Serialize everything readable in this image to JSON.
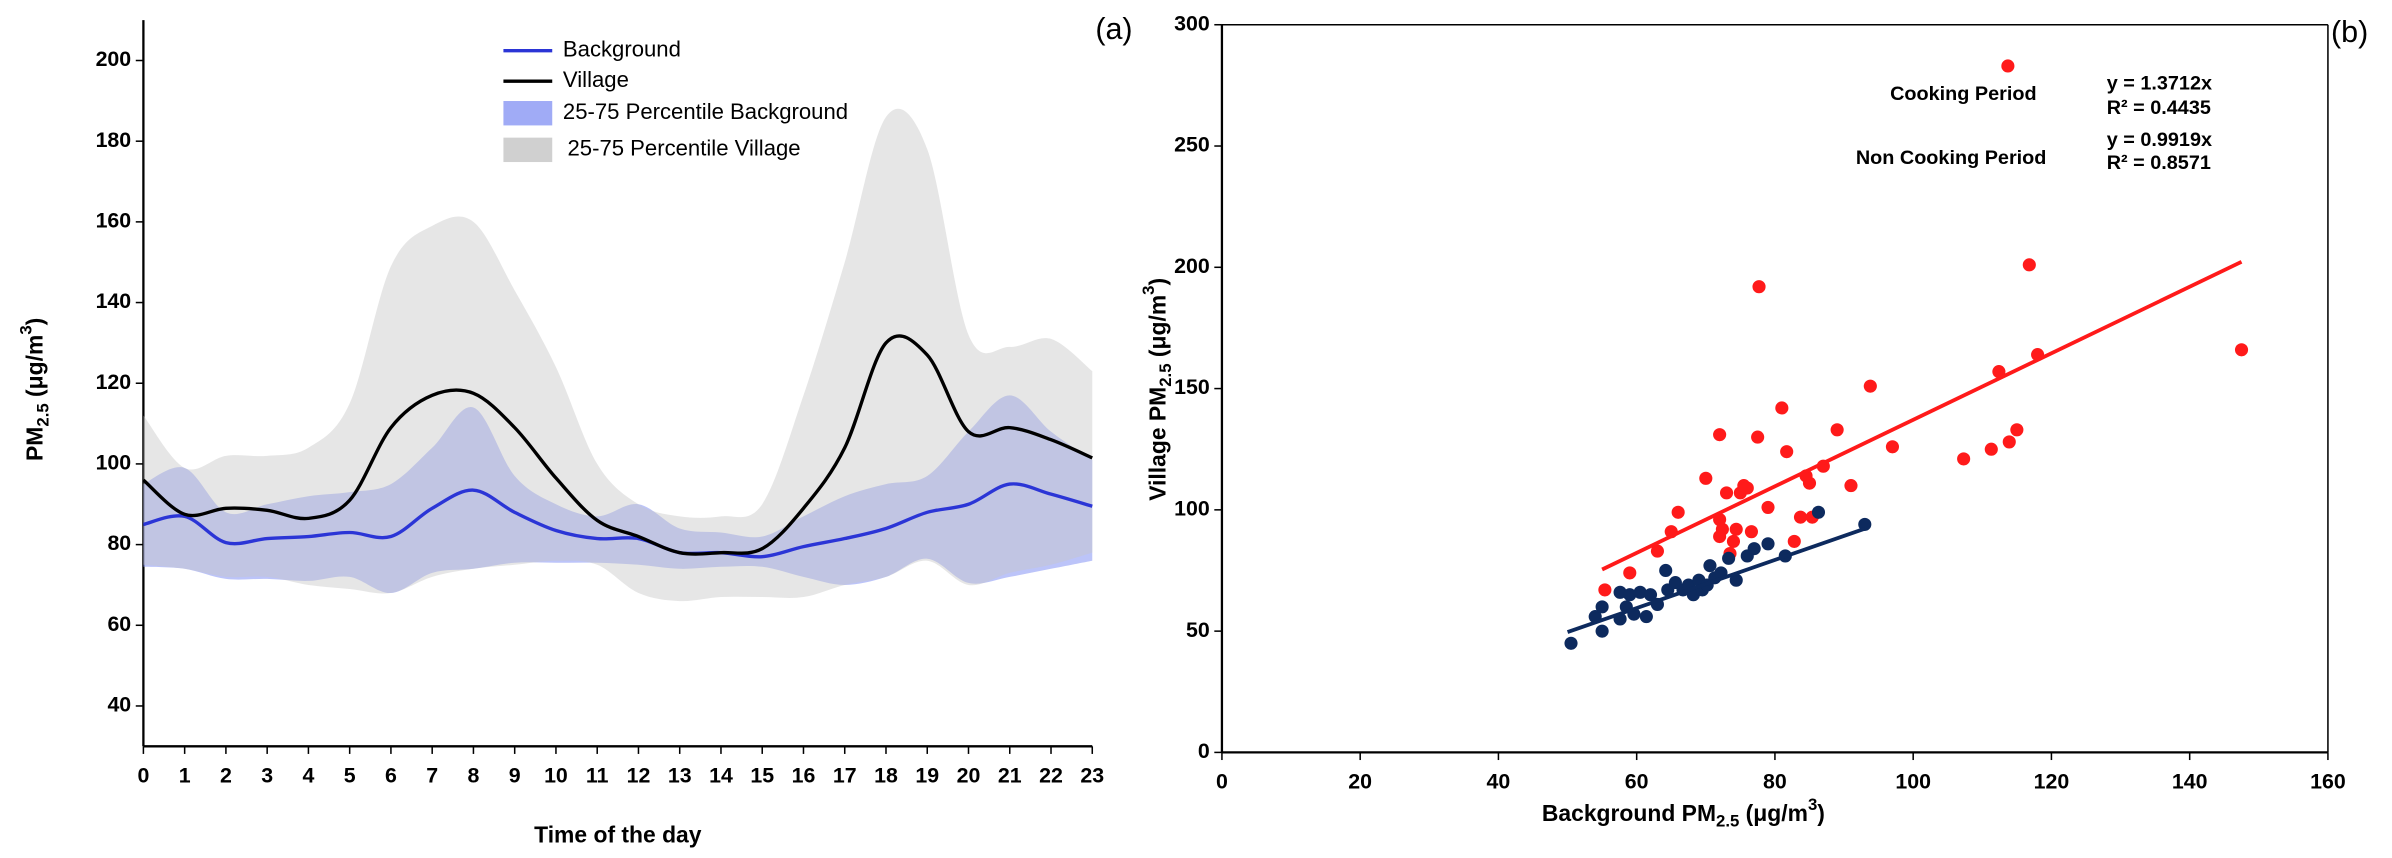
{
  "chart_data": [
    {
      "type": "line",
      "panel": "(a)",
      "xlabel": "Time of the day",
      "ylabel_parts": [
        "PM",
        "2.5",
        " (μg/m",
        "3",
        ")"
      ],
      "x": [
        0,
        1,
        2,
        3,
        4,
        5,
        6,
        7,
        8,
        9,
        10,
        11,
        12,
        13,
        14,
        15,
        16,
        17,
        18,
        19,
        20,
        21,
        22,
        23
      ],
      "xlim": [
        0,
        23
      ],
      "xticks": [
        0,
        1,
        2,
        3,
        4,
        5,
        6,
        7,
        8,
        9,
        10,
        11,
        12,
        13,
        14,
        15,
        16,
        17,
        18,
        19,
        20,
        21,
        22,
        23
      ],
      "ylim": [
        30,
        210
      ],
      "yticks": [
        40,
        60,
        80,
        100,
        120,
        140,
        160,
        180,
        200
      ],
      "series": [
        {
          "name": "Background",
          "kind": "line",
          "color": "#2b35d6",
          "values": [
            85,
            87,
            80.5,
            81.5,
            82,
            83,
            82,
            89,
            93.5,
            88,
            83.5,
            81.5,
            81.5,
            78,
            78,
            77,
            79.5,
            81.5,
            84,
            88,
            90,
            95,
            92.5,
            89.5
          ]
        },
        {
          "name": "Village",
          "kind": "line",
          "color": "#000000",
          "values": [
            96,
            87.5,
            89,
            88.5,
            86.5,
            91,
            109,
            117,
            117.5,
            109,
            96.5,
            86,
            82,
            78,
            78,
            79,
            89,
            104,
            130,
            127,
            108,
            109,
            106,
            101.5
          ]
        },
        {
          "name": "25-75 Percentile Background",
          "kind": "band",
          "color": "#8f9cf5",
          "lower": [
            74.5,
            74,
            71.5,
            71.5,
            71,
            72,
            68,
            73,
            74,
            75.5,
            75.5,
            75.5,
            75,
            74,
            74.5,
            74.5,
            72,
            70,
            72,
            76.5,
            70.5,
            72,
            74,
            76
          ],
          "upper": [
            95,
            99,
            88,
            90,
            92,
            93,
            95,
            104,
            114,
            97,
            90,
            87,
            90,
            84,
            83,
            82,
            87,
            92,
            95,
            97,
            108,
            117,
            108,
            101
          ]
        },
        {
          "name": "25-75 Percentile Village",
          "kind": "band",
          "color": "#c8c8c8",
          "lower": [
            75,
            74,
            72,
            72,
            70,
            69,
            68,
            72,
            74,
            75,
            76,
            75,
            68,
            66,
            67,
            67,
            67,
            70,
            72,
            76,
            70,
            73,
            75,
            78
          ],
          "upper": [
            112,
            99,
            102,
            102,
            104,
            115,
            149,
            159,
            160,
            143,
            124,
            100,
            90,
            87,
            87,
            90,
            117,
            150,
            186,
            178,
            132,
            129,
            131,
            123
          ]
        }
      ]
    },
    {
      "type": "scatter",
      "panel": "(b)",
      "xlabel_parts": [
        "Background PM",
        "2.5",
        " (μg/m",
        "3",
        ")"
      ],
      "ylabel_parts": [
        "Village PM",
        "2.5",
        " (μg/m",
        "3",
        ")"
      ],
      "xlim": [
        0,
        160
      ],
      "xticks": [
        0,
        20,
        40,
        60,
        80,
        100,
        120,
        140,
        160
      ],
      "ylim": [
        0,
        300
      ],
      "yticks": [
        0,
        50,
        100,
        150,
        200,
        250,
        300
      ],
      "series": [
        {
          "name": "Cooking Period",
          "color": "#ff1a1a",
          "equation": "y = 1.3712x",
          "r2": "R² = 0.4435",
          "fit": {
            "slope": 1.3712,
            "x": [
              55,
              147.5
            ]
          },
          "x": [
            55.4,
            59,
            63,
            65,
            66,
            70,
            72,
            72,
            72.4,
            72,
            73,
            73.5,
            74,
            74.4,
            75,
            75.5,
            76,
            76.6,
            77.5,
            77.7,
            79,
            81,
            81.7,
            82.8,
            83.7,
            84.5,
            85,
            85.4,
            87,
            89,
            91,
            93.8,
            97,
            107.3,
            111.3,
            112.4,
            113.9,
            115,
            116.8,
            118,
            113.7,
            147.5
          ],
          "values": [
            67,
            74,
            83,
            91,
            99,
            113,
            131,
            96,
            92,
            89,
            107,
            82,
            87,
            92,
            107,
            110,
            109,
            91,
            130,
            192,
            101,
            142,
            124,
            87,
            97,
            114,
            111,
            97,
            118,
            133,
            110,
            151,
            126,
            121,
            125,
            157,
            128,
            133,
            201,
            164,
            283,
            166
          ]
        },
        {
          "name": "Non Cooking Period",
          "color": "#0d2a5e",
          "equation": "y = 0.9919x",
          "r2": "R² = 0.8571",
          "fit": {
            "slope": 0.9919,
            "x": [
              50,
              93
            ]
          },
          "x": [
            50.5,
            54,
            55,
            55,
            57.6,
            57.6,
            58.5,
            59,
            59.6,
            60.5,
            61.4,
            62,
            63,
            64.2,
            64.5,
            65.6,
            66.7,
            67.5,
            68.2,
            69,
            69.5,
            70.2,
            70.6,
            71.3,
            72.2,
            73.3,
            74.4,
            76,
            77,
            79,
            81.5,
            86.3,
            93
          ],
          "values": [
            45,
            56,
            60,
            50,
            66,
            55,
            60,
            65,
            57,
            66,
            56,
            65,
            61,
            75,
            67,
            70,
            67,
            69,
            65,
            71,
            67,
            69,
            77,
            72,
            74,
            80,
            71,
            81,
            84,
            86,
            81,
            99,
            94
          ]
        }
      ]
    }
  ]
}
